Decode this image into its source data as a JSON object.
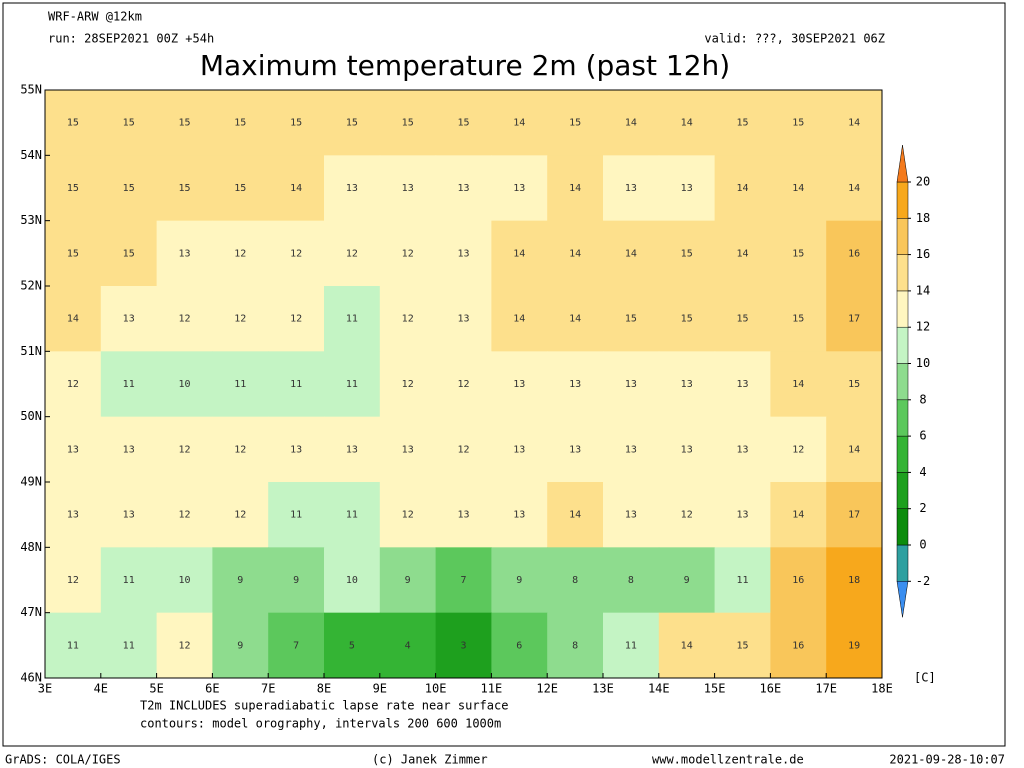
{
  "header": {
    "model": "WRF-ARW @12km",
    "run": "run: 28SEP2021 00Z +54h",
    "valid": "valid: ???, 30SEP2021 06Z",
    "title": "Maximum temperature 2m (past 12h)"
  },
  "map": {
    "lat_labels": [
      "55N",
      "54N",
      "53N",
      "52N",
      "51N",
      "50N",
      "49N",
      "48N",
      "47N",
      "46N"
    ],
    "lon_labels": [
      "3E",
      "4E",
      "5E",
      "6E",
      "7E",
      "8E",
      "9E",
      "10E",
      "11E",
      "12E",
      "13E",
      "14E",
      "15E",
      "16E",
      "17E",
      "18E"
    ],
    "grid": [
      [
        15,
        15,
        15,
        15,
        15,
        15,
        15,
        15,
        14,
        15,
        14,
        14,
        15,
        15,
        14
      ],
      [
        15,
        15,
        15,
        15,
        14,
        13,
        13,
        13,
        13,
        14,
        13,
        13,
        14,
        14,
        14
      ],
      [
        15,
        15,
        13,
        12,
        12,
        12,
        12,
        13,
        14,
        14,
        14,
        15,
        14,
        15,
        16
      ],
      [
        14,
        13,
        12,
        12,
        12,
        11,
        12,
        13,
        14,
        14,
        15,
        15,
        15,
        15,
        17
      ],
      [
        12,
        11,
        10,
        11,
        11,
        11,
        12,
        12,
        13,
        13,
        13,
        13,
        13,
        14,
        15
      ],
      [
        13,
        13,
        12,
        12,
        13,
        13,
        13,
        12,
        13,
        13,
        13,
        13,
        13,
        12,
        14
      ],
      [
        13,
        13,
        12,
        12,
        11,
        11,
        12,
        13,
        13,
        14,
        13,
        12,
        13,
        14,
        17
      ],
      [
        12,
        11,
        10,
        9,
        9,
        10,
        9,
        7,
        9,
        8,
        8,
        9,
        11,
        16,
        18
      ],
      [
        11,
        11,
        12,
        9,
        7,
        5,
        4,
        3,
        6,
        8,
        11,
        14,
        15,
        16,
        19
      ]
    ]
  },
  "colorbar": {
    "levels": [
      -2,
      0,
      2,
      4,
      6,
      8,
      10,
      12,
      14,
      16,
      18,
      20
    ],
    "colors": [
      "#3a8ef0",
      "#2ea0a0",
      "#0c8c0c",
      "#1ea01e",
      "#34b434",
      "#5cc85c",
      "#8edc8e",
      "#c4f4c4",
      "#fff6c0",
      "#fde08c",
      "#f9c65a",
      "#f7a81c",
      "#f47a1c"
    ],
    "unit": "[C]"
  },
  "notes": [
    "T2m INCLUDES superadiabatic lapse rate near surface",
    "contours: model orography, intervals 200 600 1000m"
  ],
  "footer": {
    "left": "GrADS: COLA/IGES",
    "center": "(c) Janek Zimmer",
    "site": "www.modellzentrale.de",
    "right": "2021-09-28-10:07"
  }
}
